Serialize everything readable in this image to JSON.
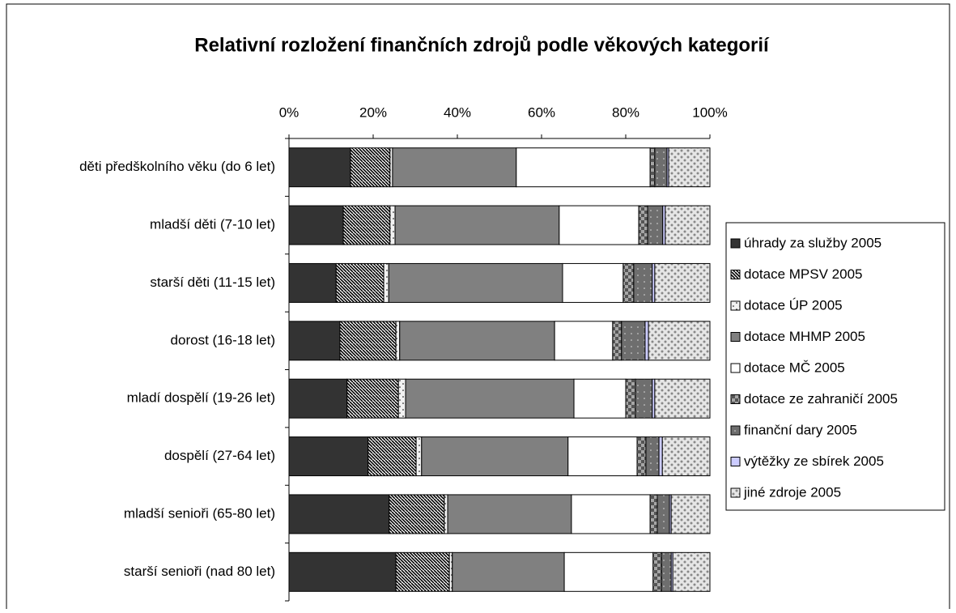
{
  "chart_data": {
    "type": "stacked-bar-horizontal",
    "title": "Relativní rozložení finančních zdrojů podle věkových kategorií",
    "categories": [
      "děti předškolního věku (do 6 let)",
      "mladší děti (7-10 let)",
      "starší děti (11-15 let)",
      "dorost (16-18 let)",
      "mladí dospělí (19-26 let)",
      "dospělí (27-64 let)",
      "mladší senioři (65-80 let)",
      "starší senioři (nad 80 let)"
    ],
    "xlim": [
      0,
      100
    ],
    "xticks": [
      {
        "value": 0,
        "label": "0%"
      },
      {
        "value": 20,
        "label": "20%"
      },
      {
        "value": 40,
        "label": "40%"
      },
      {
        "value": 60,
        "label": "60%"
      },
      {
        "value": 80,
        "label": "80%"
      },
      {
        "value": 100,
        "label": "100%"
      }
    ],
    "series": [
      {
        "name": "úhrady za služby 2005",
        "color": "#333333",
        "values": [
          14.6,
          12.9,
          11.2,
          12.1,
          13.8,
          18.8,
          23.8,
          25.4
        ]
      },
      {
        "name": "dotace MPSV 2005",
        "color": "#ffffff",
        "values": [
          9.4,
          11.1,
          11.3,
          13.3,
          12.2,
          11.4,
          13.1,
          12.7
        ]
      },
      {
        "name": "dotace ÚP 2005",
        "color": "#f2f2f2",
        "values": [
          0.6,
          1.2,
          1.2,
          0.9,
          1.7,
          1.3,
          0.8,
          0.7
        ]
      },
      {
        "name": "dotace MHMP 2005",
        "color": "#808080",
        "values": [
          29.4,
          39.0,
          41.3,
          36.8,
          40.0,
          34.8,
          29.4,
          26.6
        ]
      },
      {
        "name": "dotace MČ 2005",
        "color": "#ffffff",
        "values": [
          31.8,
          18.9,
          14.4,
          13.8,
          12.3,
          16.4,
          18.7,
          21.1
        ]
      },
      {
        "name": "dotace ze zahraničí 2005",
        "color": "#a6a6a6",
        "values": [
          1.1,
          2.1,
          2.5,
          2.1,
          2.3,
          2.1,
          1.7,
          2.0
        ]
      },
      {
        "name": "finanční dary 2005",
        "color": "#6e6e6e",
        "values": [
          2.9,
          3.6,
          4.4,
          5.6,
          4.0,
          3.1,
          2.9,
          2.3
        ]
      },
      {
        "name": "výtěžky ze sbírek 2005",
        "color": "#ccccff",
        "values": [
          0.4,
          0.6,
          0.6,
          0.8,
          0.6,
          0.8,
          0.4,
          0.4
        ]
      },
      {
        "name": "jiné zdroje 2005",
        "color": "#e6e6e6",
        "values": [
          9.8,
          10.6,
          13.1,
          14.6,
          13.1,
          11.3,
          9.2,
          8.8
        ]
      }
    ]
  }
}
